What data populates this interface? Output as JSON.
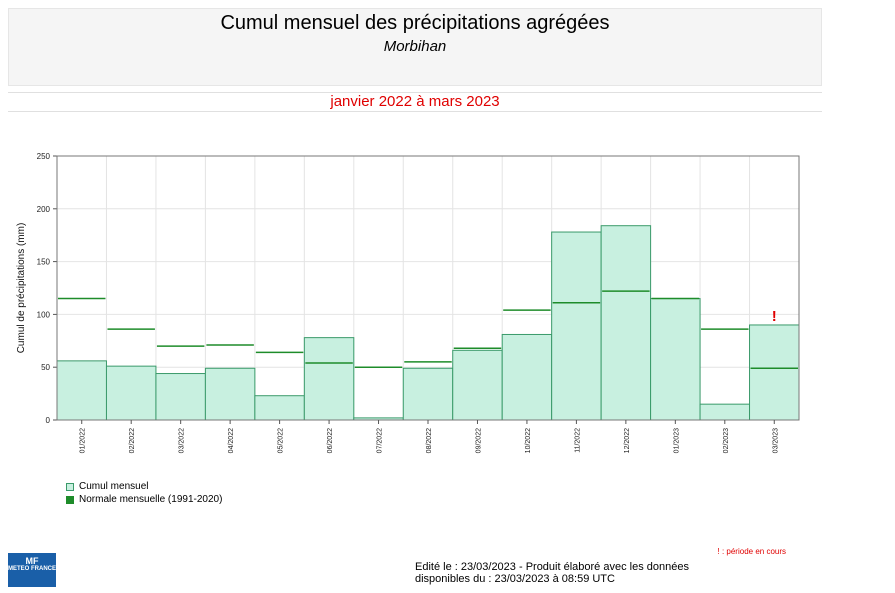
{
  "header": {
    "title": "Cumul mensuel des précipitations agrégées",
    "subtitle": "Morbihan",
    "period": "janvier 2022 à mars 2023"
  },
  "chart_data": {
    "type": "bar",
    "ylabel": "Cumul de précipitations (mm)",
    "ylim": [
      0,
      250
    ],
    "yticks": [
      0,
      50,
      100,
      150,
      200,
      250
    ],
    "grid": true,
    "categories": [
      "01/2022",
      "02/2022",
      "03/2022",
      "04/2022",
      "05/2022",
      "06/2022",
      "07/2022",
      "08/2022",
      "09/2022",
      "10/2022",
      "11/2022",
      "12/2022",
      "01/2023",
      "02/2023",
      "03/2023"
    ],
    "series": [
      {
        "name": "Cumul mensuel",
        "values": [
          56,
          51,
          44,
          49,
          23,
          78,
          2,
          49,
          66,
          81,
          178,
          184,
          115,
          15,
          90
        ]
      },
      {
        "name": "Normale mensuelle (1991-2020)",
        "values": [
          115,
          86,
          70,
          71,
          64,
          54,
          50,
          55,
          68,
          104,
          111,
          122,
          115,
          86,
          49
        ]
      }
    ],
    "annotation": {
      "category": "03/2023",
      "symbol": "!"
    },
    "colors": {
      "bar_fill": "#c8f0e0",
      "bar_stroke": "#3a9a6a",
      "normal_line": "#1e8c2a",
      "flag": "#e00000",
      "grid": "#e4e4e4"
    }
  },
  "legend": {
    "cumul_label": "Cumul mensuel",
    "normal_label": "Normale mensuelle (1991-2020)"
  },
  "footer": {
    "note": "! : période en cours",
    "edited_line1": "Edité le : 23/03/2023 - Produit élaboré avec les données",
    "edited_line2": "disponibles du : 23/03/2023 à 08:59 UTC",
    "logo_mark": "MF",
    "logo_text": "METEO FRANCE"
  }
}
